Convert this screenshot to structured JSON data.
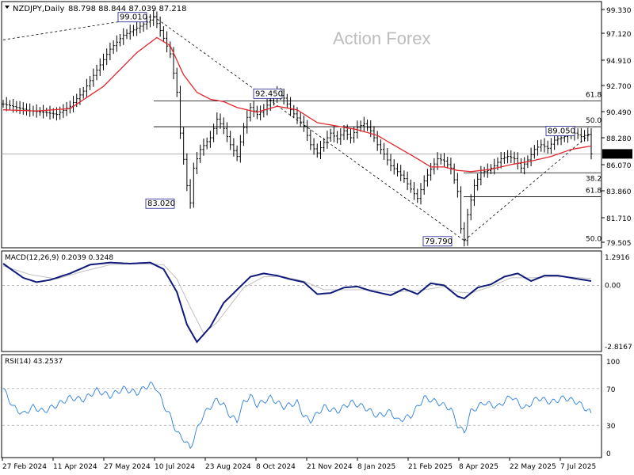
{
  "header": {
    "symbol": "NZDJPY,Daily",
    "ohlc": "88.798 88.844 87.039 87.218",
    "watermark": "Action Forex"
  },
  "chart_data": [
    {
      "type": "candlestick",
      "title": "NZDJPY,Daily",
      "ylim": [
        79.505,
        99.33
      ],
      "y_ticks": [
        "99.330",
        "97.120",
        "94.910",
        "92.700",
        "90.490",
        "88.280",
        "86.070",
        "83.860",
        "81.710",
        "79.505"
      ],
      "price_marker": "87.218",
      "x_ticks": [
        "27 Feb 2024",
        "11 Apr 2024",
        "27 May 2024",
        "10 Jul 2024",
        "23 Aug 2024",
        "8 Oct 2024",
        "21 Nov 2024",
        "8 Jan 2025",
        "21 Feb 2025",
        "8 Apr 2025",
        "22 May 2025",
        "7 Jul 2025"
      ],
      "close_points": [
        [
          0,
          91.5
        ],
        [
          4,
          91.2
        ],
        [
          8,
          90.9
        ],
        [
          12,
          90.8
        ],
        [
          16,
          90.6
        ],
        [
          20,
          91.3
        ],
        [
          24,
          92.6
        ],
        [
          28,
          94.4
        ],
        [
          32,
          96.2
        ],
        [
          36,
          97.4
        ],
        [
          40,
          98.0
        ],
        [
          44,
          98.7
        ],
        [
          45,
          99.0
        ],
        [
          47,
          97.8
        ],
        [
          50,
          95.8
        ],
        [
          52,
          92.5
        ],
        [
          53,
          89.0
        ],
        [
          55,
          84.5
        ],
        [
          56,
          83.02
        ],
        [
          57,
          86.0
        ],
        [
          59,
          87.6
        ],
        [
          62,
          88.6
        ],
        [
          64,
          90.2
        ],
        [
          66,
          89.4
        ],
        [
          68,
          88.0
        ],
        [
          70,
          87.0
        ],
        [
          72,
          89.5
        ],
        [
          74,
          91.2
        ],
        [
          76,
          90.6
        ],
        [
          78,
          91.0
        ],
        [
          80,
          91.8
        ],
        [
          82,
          92.45
        ],
        [
          84,
          92.0
        ],
        [
          86,
          91.0
        ],
        [
          88,
          90.3
        ],
        [
          90,
          89.6
        ],
        [
          92,
          88.0
        ],
        [
          94,
          87.3
        ],
        [
          96,
          88.2
        ],
        [
          98,
          89.0
        ],
        [
          100,
          88.5
        ],
        [
          102,
          89.2
        ],
        [
          104,
          88.6
        ],
        [
          106,
          89.5
        ],
        [
          108,
          89.8
        ],
        [
          110,
          89.2
        ],
        [
          112,
          88.0
        ],
        [
          114,
          87.2
        ],
        [
          116,
          86.2
        ],
        [
          118,
          85.7
        ],
        [
          120,
          85.1
        ],
        [
          122,
          84.2
        ],
        [
          124,
          83.4
        ],
        [
          126,
          84.9
        ],
        [
          128,
          85.9
        ],
        [
          130,
          86.8
        ],
        [
          132,
          86.6
        ],
        [
          134,
          86.0
        ],
        [
          136,
          84.0
        ],
        [
          137,
          80.8
        ],
        [
          138,
          79.79
        ],
        [
          139,
          82.0
        ],
        [
          141,
          84.5
        ],
        [
          143,
          85.6
        ],
        [
          145,
          85.8
        ],
        [
          147,
          86.2
        ],
        [
          149,
          86.8
        ],
        [
          151,
          87.0
        ],
        [
          153,
          86.8
        ],
        [
          155,
          86.0
        ],
        [
          157,
          86.7
        ],
        [
          159,
          87.6
        ],
        [
          161,
          88.0
        ],
        [
          163,
          87.7
        ],
        [
          165,
          88.4
        ],
        [
          167,
          88.6
        ],
        [
          169,
          88.8
        ],
        [
          171,
          89.0
        ],
        [
          173,
          88.7
        ],
        [
          175,
          88.9
        ],
        [
          176,
          87.218
        ]
      ],
      "ma": [
        [
          0,
          91.0
        ],
        [
          10,
          90.9
        ],
        [
          20,
          91.1
        ],
        [
          30,
          93.0
        ],
        [
          40,
          95.9
        ],
        [
          46,
          97.2
        ],
        [
          50,
          96.5
        ],
        [
          54,
          94.0
        ],
        [
          58,
          92.5
        ],
        [
          62,
          91.9
        ],
        [
          66,
          91.7
        ],
        [
          70,
          91.2
        ],
        [
          76,
          90.8
        ],
        [
          82,
          91.3
        ],
        [
          88,
          91.0
        ],
        [
          94,
          89.9
        ],
        [
          100,
          89.6
        ],
        [
          106,
          89.3
        ],
        [
          112,
          88.8
        ],
        [
          118,
          87.8
        ],
        [
          124,
          86.8
        ],
        [
          128,
          86.1
        ],
        [
          132,
          86.1
        ],
        [
          136,
          85.8
        ],
        [
          140,
          85.7
        ],
        [
          146,
          85.9
        ],
        [
          152,
          86.3
        ],
        [
          158,
          86.6
        ],
        [
          164,
          87.0
        ],
        [
          170,
          87.6
        ],
        [
          176,
          87.9
        ]
      ],
      "labels": [
        "99.010",
        "92.450",
        "89.050",
        "83.020",
        "79.790"
      ],
      "fib_labels": [
        "61.8",
        "50.0",
        "38.2",
        "61.8",
        "50.0"
      ]
    },
    {
      "type": "line",
      "title": "MACD(12,26,9) 0.2039 0.3248",
      "ylim": [
        -2.8167,
        1.2916
      ],
      "y_ticks": [
        "1.2916",
        "0.00",
        "-2.8167"
      ],
      "series": [
        {
          "name": "MACD",
          "points": [
            [
              0,
              1.0
            ],
            [
              6,
              0.35
            ],
            [
              10,
              0.15
            ],
            [
              14,
              0.25
            ],
            [
              20,
              0.55
            ],
            [
              26,
              0.95
            ],
            [
              32,
              1.05
            ],
            [
              38,
              1.0
            ],
            [
              44,
              1.05
            ],
            [
              48,
              0.75
            ],
            [
              52,
              -0.3
            ],
            [
              55,
              -1.8
            ],
            [
              58,
              -2.6
            ],
            [
              62,
              -1.9
            ],
            [
              66,
              -0.8
            ],
            [
              70,
              -0.2
            ],
            [
              74,
              0.4
            ],
            [
              78,
              0.55
            ],
            [
              82,
              0.45
            ],
            [
              86,
              0.28
            ],
            [
              90,
              0.15
            ],
            [
              94,
              -0.4
            ],
            [
              98,
              -0.35
            ],
            [
              102,
              -0.1
            ],
            [
              106,
              -0.05
            ],
            [
              110,
              -0.25
            ],
            [
              116,
              -0.45
            ],
            [
              120,
              -0.15
            ],
            [
              124,
              -0.4
            ],
            [
              128,
              0.1
            ],
            [
              132,
              0.0
            ],
            [
              136,
              -0.5
            ],
            [
              138,
              -0.6
            ],
            [
              142,
              -0.1
            ],
            [
              146,
              0.05
            ],
            [
              150,
              0.4
            ],
            [
              154,
              0.55
            ],
            [
              158,
              0.2
            ],
            [
              162,
              0.45
            ],
            [
              166,
              0.45
            ],
            [
              170,
              0.35
            ],
            [
              176,
              0.2
            ]
          ]
        },
        {
          "name": "Signal",
          "points": [
            [
              0,
              0.9
            ],
            [
              8,
              0.5
            ],
            [
              16,
              0.3
            ],
            [
              24,
              0.65
            ],
            [
              32,
              0.95
            ],
            [
              40,
              1.0
            ],
            [
              48,
              0.95
            ],
            [
              52,
              0.3
            ],
            [
              56,
              -1.0
            ],
            [
              60,
              -2.2
            ],
            [
              64,
              -1.7
            ],
            [
              68,
              -0.9
            ],
            [
              72,
              -0.1
            ],
            [
              78,
              0.4
            ],
            [
              84,
              0.4
            ],
            [
              90,
              0.2
            ],
            [
              96,
              -0.2
            ],
            [
              102,
              -0.2
            ],
            [
              110,
              -0.2
            ],
            [
              118,
              -0.3
            ],
            [
              126,
              -0.2
            ],
            [
              132,
              -0.05
            ],
            [
              136,
              -0.3
            ],
            [
              140,
              -0.35
            ],
            [
              146,
              -0.05
            ],
            [
              152,
              0.35
            ],
            [
              158,
              0.35
            ],
            [
              164,
              0.4
            ],
            [
              170,
              0.38
            ],
            [
              176,
              0.32
            ]
          ]
        }
      ]
    },
    {
      "type": "line",
      "title": "RSI(14) 43.2537",
      "ylim": [
        0,
        100
      ],
      "y_ticks": [
        "100",
        "70",
        "30",
        "0"
      ],
      "series": [
        {
          "name": "RSI",
          "points": [
            [
              0,
              70
            ],
            [
              3,
              50
            ],
            [
              6,
              42
            ],
            [
              9,
              50
            ],
            [
              12,
              45
            ],
            [
              16,
              52
            ],
            [
              20,
              60
            ],
            [
              24,
              58
            ],
            [
              28,
              68
            ],
            [
              32,
              62
            ],
            [
              36,
              70
            ],
            [
              40,
              65
            ],
            [
              44,
              75
            ],
            [
              46,
              70
            ],
            [
              48,
              52
            ],
            [
              50,
              40
            ],
            [
              52,
              22
            ],
            [
              54,
              15
            ],
            [
              56,
              5
            ],
            [
              58,
              25
            ],
            [
              60,
              42
            ],
            [
              62,
              50
            ],
            [
              64,
              58
            ],
            [
              66,
              52
            ],
            [
              68,
              40
            ],
            [
              70,
              35
            ],
            [
              72,
              55
            ],
            [
              74,
              62
            ],
            [
              76,
              52
            ],
            [
              80,
              60
            ],
            [
              84,
              50
            ],
            [
              88,
              55
            ],
            [
              90,
              40
            ],
            [
              92,
              35
            ],
            [
              96,
              50
            ],
            [
              100,
              45
            ],
            [
              104,
              55
            ],
            [
              108,
              50
            ],
            [
              112,
              40
            ],
            [
              116,
              45
            ],
            [
              118,
              35
            ],
            [
              122,
              40
            ],
            [
              126,
              60
            ],
            [
              130,
              55
            ],
            [
              134,
              48
            ],
            [
              136,
              30
            ],
            [
              138,
              22
            ],
            [
              140,
              45
            ],
            [
              144,
              55
            ],
            [
              148,
              50
            ],
            [
              152,
              62
            ],
            [
              156,
              48
            ],
            [
              160,
              60
            ],
            [
              164,
              55
            ],
            [
              168,
              60
            ],
            [
              172,
              55
            ],
            [
              176,
              43.25
            ]
          ]
        }
      ]
    }
  ]
}
